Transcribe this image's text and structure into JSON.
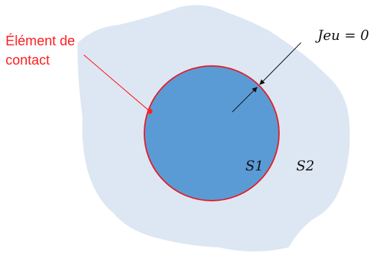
{
  "contact_element": {
    "line1": "Élément de",
    "line2": "contact"
  },
  "gap_label": "Jeu = 0",
  "region_inner": "S1",
  "region_outer": "S2",
  "colors": {
    "outer_region": "#dde7f3",
    "inner_disk": "#5b9bd5",
    "contact_red": "#ff2020",
    "arrow": "#111111"
  }
}
